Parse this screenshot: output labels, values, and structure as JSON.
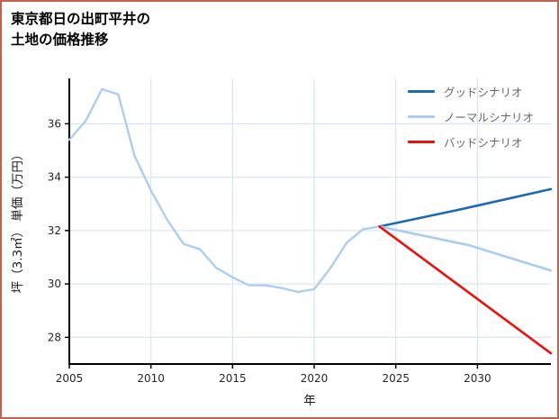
{
  "frame": {
    "border_color": "#c4604e",
    "background": "#ffffff",
    "grid_color": "#dbe5f1",
    "axis_color": "#000000"
  },
  "title": {
    "line1": "東京都日の出町平井の",
    "line2": "土地の価格推移"
  },
  "legend": {
    "items": [
      {
        "label": "グッドシナリオ",
        "color": "#1a6ab5"
      },
      {
        "label": "ノーマルシナリオ",
        "color": "#a8cdf0"
      },
      {
        "label": "バッドシナリオ",
        "color": "#e8120b"
      }
    ]
  },
  "chart_data": {
    "type": "line",
    "title": "東京都日の出町平井の 土地の価格推移",
    "xlabel": "年",
    "ylabel": "坪（3.3㎡） 単価（万円）",
    "xlim": [
      2005,
      2034.5
    ],
    "ylim": [
      27.0,
      37.7
    ],
    "xticks": [
      2005,
      2010,
      2015,
      2020,
      2025,
      2030
    ],
    "yticks": [
      28,
      30,
      32,
      34,
      36
    ],
    "grid": true,
    "legend_position": "upper right",
    "series": [
      {
        "id": "history",
        "label": "",
        "color": "#a8cdf0",
        "stroke_width": 2.3,
        "x": [
          2005,
          2006,
          2007,
          2008,
          2009,
          2010,
          2011,
          2012,
          2013,
          2014,
          2015,
          2016,
          2017,
          2018,
          2019,
          2020,
          2021,
          2022,
          2023,
          2024
        ],
        "y": [
          35.4,
          36.1,
          37.3,
          37.1,
          34.8,
          33.5,
          32.4,
          31.5,
          31.3,
          30.6,
          30.25,
          29.95,
          29.95,
          29.85,
          29.7,
          29.8,
          30.6,
          31.55,
          32.05,
          32.15
        ]
      },
      {
        "id": "good-scenario",
        "label": "グッドシナリオ",
        "color": "#1a6ab5",
        "stroke_width": 2.6,
        "x": [
          2024,
          2029,
          2034.5
        ],
        "y": [
          32.15,
          32.8,
          33.55
        ]
      },
      {
        "id": "normal-scenario",
        "label": "ノーマルシナリオ",
        "color": "#a8cdf0",
        "stroke_width": 2.6,
        "x": [
          2024,
          2029.5,
          2034.5
        ],
        "y": [
          32.15,
          31.45,
          30.5
        ]
      },
      {
        "id": "bad-scenario",
        "label": "バッドシナリオ",
        "color": "#e8120b",
        "stroke_width": 2.6,
        "x": [
          2024,
          2034.5
        ],
        "y": [
          32.15,
          27.4
        ]
      }
    ]
  }
}
